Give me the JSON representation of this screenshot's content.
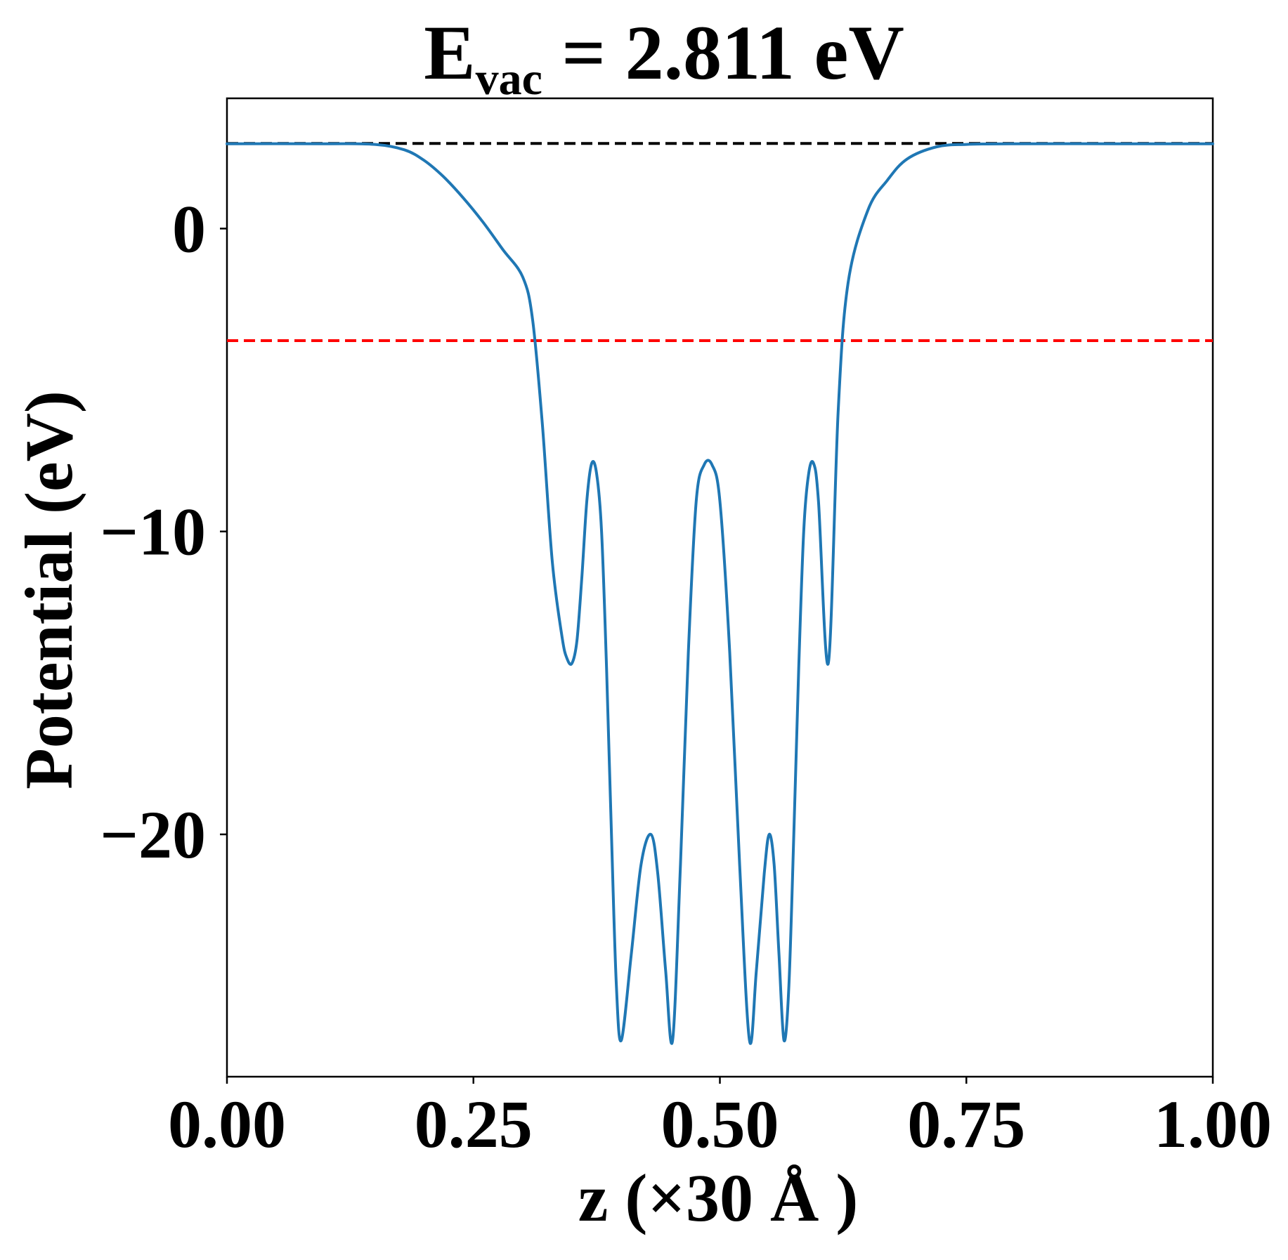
{
  "chart_data": {
    "type": "line",
    "title": {
      "symbol": "E",
      "subscript": "vac",
      "rest": " = 2.811 eV"
    },
    "xlabel": "z (×30 Å )",
    "ylabel": "Potential (eV)",
    "xlim": [
      0.0,
      1.0
    ],
    "ylim": [
      -28.0,
      4.3
    ],
    "x_ticks": [
      0.0,
      0.25,
      0.5,
      0.75,
      1.0
    ],
    "x_tick_labels": [
      "0.00",
      "0.25",
      "0.50",
      "0.75",
      "1.00"
    ],
    "y_ticks": [
      0,
      -10,
      -20
    ],
    "y_tick_labels": [
      "0",
      "−10",
      "−20"
    ],
    "grid": false,
    "legend": "none",
    "reference_lines": [
      {
        "name": "vacuum-level",
        "y": 2.811,
        "color": "#000000",
        "style": "dashed"
      },
      {
        "name": "fermi-level",
        "y": -3.7,
        "color": "#ff0000",
        "style": "dashed"
      }
    ],
    "series": [
      {
        "name": "planar-averaged-potential",
        "color": "#1f77b4",
        "x": [
          0.0,
          0.1,
          0.15,
          0.18,
          0.2,
          0.22,
          0.24,
          0.26,
          0.28,
          0.3,
          0.31,
          0.32,
          0.33,
          0.34,
          0.345,
          0.35,
          0.355,
          0.36,
          0.365,
          0.37,
          0.375,
          0.38,
          0.385,
          0.39,
          0.395,
          0.4,
          0.41,
          0.42,
          0.43,
          0.437,
          0.445,
          0.452,
          0.46,
          0.468,
          0.476,
          0.484,
          0.492,
          0.5,
          0.51,
          0.52,
          0.53,
          0.537,
          0.545,
          0.55,
          0.555,
          0.56,
          0.565,
          0.57,
          0.575,
          0.58,
          0.585,
          0.59,
          0.595,
          0.6,
          0.61,
          0.62,
          0.63,
          0.65,
          0.67,
          0.69,
          0.72,
          0.75,
          0.8,
          0.9,
          1.0
        ],
        "y": [
          2.8,
          2.8,
          2.78,
          2.6,
          2.25,
          1.7,
          1.0,
          0.2,
          -0.7,
          -1.6,
          -3.0,
          -6.5,
          -11.0,
          -13.5,
          -14.2,
          -14.35,
          -13.6,
          -11.5,
          -9.0,
          -7.75,
          -8.1,
          -10.0,
          -14.5,
          -20.0,
          -25.0,
          -26.8,
          -24.0,
          -21.0,
          -20.0,
          -21.3,
          -24.5,
          -26.8,
          -21.0,
          -14.0,
          -9.0,
          -7.8,
          -7.8,
          -9.0,
          -14.0,
          -21.0,
          -26.8,
          -24.5,
          -21.3,
          -20.0,
          -21.0,
          -24.0,
          -26.8,
          -25.0,
          -20.0,
          -14.5,
          -10.0,
          -8.1,
          -7.75,
          -9.0,
          -14.35,
          -6.0,
          -1.8,
          0.6,
          1.6,
          2.3,
          2.7,
          2.78,
          2.8,
          2.8,
          2.8
        ]
      }
    ]
  }
}
